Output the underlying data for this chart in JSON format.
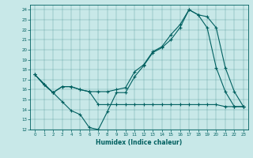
{
  "xlabel": "Humidex (Indice chaleur)",
  "xlim": [
    -0.5,
    23.5
  ],
  "ylim": [
    12,
    24.5
  ],
  "yticks": [
    12,
    13,
    14,
    15,
    16,
    17,
    18,
    19,
    20,
    21,
    22,
    23,
    24
  ],
  "xticks": [
    0,
    1,
    2,
    3,
    4,
    5,
    6,
    7,
    8,
    9,
    10,
    11,
    12,
    13,
    14,
    15,
    16,
    17,
    18,
    19,
    20,
    21,
    22,
    23
  ],
  "bg_color": "#c8e8e8",
  "line_color": "#006060",
  "line1_x": [
    0,
    1,
    2,
    3,
    4,
    5,
    6,
    7,
    8,
    9,
    10,
    11,
    12,
    13,
    14,
    15,
    16,
    17,
    18,
    19,
    20,
    21,
    22,
    23
  ],
  "line1_y": [
    17.5,
    16.5,
    15.7,
    14.8,
    13.9,
    13.5,
    12.2,
    12.0,
    13.8,
    15.7,
    15.7,
    17.3,
    18.4,
    19.7,
    20.2,
    21.0,
    22.2,
    24.0,
    23.5,
    22.2,
    18.2,
    15.8,
    14.3,
    14.3
  ],
  "line2_x": [
    0,
    1,
    2,
    3,
    4,
    5,
    6,
    7,
    8,
    9,
    10,
    11,
    12,
    13,
    14,
    15,
    16,
    17,
    18,
    19,
    20,
    21,
    22,
    23
  ],
  "line2_y": [
    17.5,
    16.5,
    15.7,
    16.3,
    16.3,
    16.0,
    15.8,
    15.8,
    15.8,
    16.0,
    16.2,
    17.8,
    18.5,
    19.8,
    20.3,
    21.5,
    22.5,
    24.0,
    23.5,
    23.3,
    22.2,
    18.2,
    15.8,
    14.3
  ],
  "line3_x": [
    0,
    2,
    3,
    4,
    5,
    6,
    7,
    8,
    9,
    10,
    11,
    12,
    13,
    14,
    15,
    16,
    17,
    18,
    19,
    20,
    21,
    22,
    23
  ],
  "line3_y": [
    17.5,
    15.7,
    16.3,
    16.3,
    16.0,
    15.8,
    14.5,
    14.5,
    14.5,
    14.5,
    14.5,
    14.5,
    14.5,
    14.5,
    14.5,
    14.5,
    14.5,
    14.5,
    14.5,
    14.5,
    14.3,
    14.3,
    14.3
  ]
}
